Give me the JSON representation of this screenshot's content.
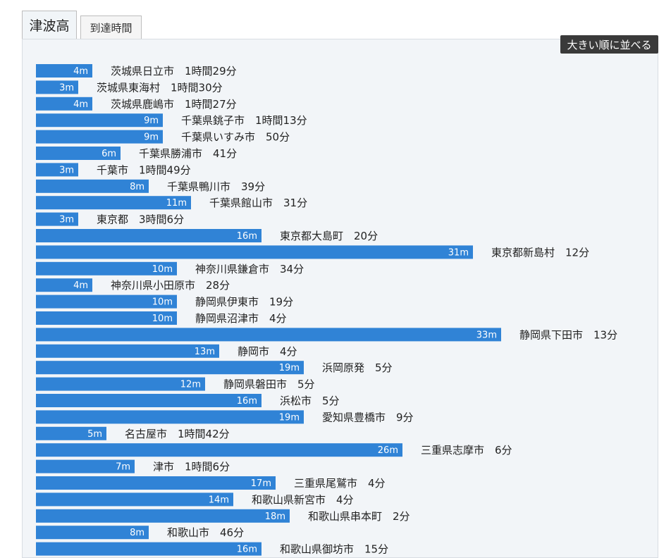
{
  "tabs": [
    {
      "label": "津波高",
      "active": true
    },
    {
      "label": "到達時間",
      "active": false
    }
  ],
  "sort_button": "大きい順に並べる",
  "colors": {
    "bar": "#3083d6"
  },
  "chart_data": {
    "type": "bar",
    "orientation": "horizontal",
    "unit": "m",
    "categories": [
      "茨城県日立市",
      "茨城県東海村",
      "茨城県鹿嶋市",
      "千葉県銚子市",
      "千葉県いすみ市",
      "千葉県勝浦市",
      "千葉市",
      "千葉県鴨川市",
      "千葉県館山市",
      "東京都",
      "東京都大島町",
      "東京都新島村",
      "神奈川県鎌倉市",
      "神奈川県小田原市",
      "静岡県伊東市",
      "静岡県沼津市",
      "静岡県下田市",
      "静岡市",
      "浜岡原発",
      "静岡県磐田市",
      "浜松市",
      "愛知県豊橋市",
      "名古屋市",
      "三重県志摩市",
      "津市",
      "三重県尾鷲市",
      "和歌山県新宮市",
      "和歌山県串本町",
      "和歌山市",
      "和歌山県御坊市"
    ],
    "values": [
      4,
      3,
      4,
      9,
      9,
      6,
      3,
      8,
      11,
      3,
      16,
      31,
      10,
      4,
      10,
      10,
      33,
      13,
      19,
      12,
      16,
      19,
      5,
      26,
      7,
      17,
      14,
      18,
      8,
      16
    ],
    "value_labels": [
      "4m",
      "3m",
      "4m",
      "9m",
      "9m",
      "6m",
      "3m",
      "8m",
      "11m",
      "3m",
      "16m",
      "31m",
      "10m",
      "4m",
      "10m",
      "10m",
      "33m",
      "13m",
      "19m",
      "12m",
      "16m",
      "19m",
      "5m",
      "26m",
      "7m",
      "17m",
      "14m",
      "18m",
      "8m",
      "16m"
    ],
    "arrival_times": [
      "1時間29分",
      "1時間30分",
      "1時間27分",
      "1時間13分",
      "50分",
      "41分",
      "1時間49分",
      "39分",
      "31分",
      "3時間6分",
      "20分",
      "12分",
      "34分",
      "28分",
      "19分",
      "4分",
      "13分",
      "4分",
      "5分",
      "5分",
      "5分",
      "9分",
      "1時間42分",
      "6分",
      "1時間6分",
      "4分",
      "4分",
      "2分",
      "46分",
      "15分"
    ]
  }
}
